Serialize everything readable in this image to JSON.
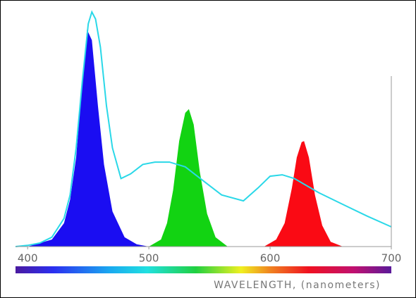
{
  "chart_data": {
    "type": "area",
    "x_label": "WAVELENGTH, (nanometers)",
    "xlim": [
      390,
      700
    ],
    "xticks": [
      400,
      500,
      600,
      700
    ],
    "ylim": [
      0,
      100
    ],
    "series": [
      {
        "color": "#1a0df2",
        "fill": true,
        "x": [
          400,
          420,
          430,
          435,
          440,
          445,
          449,
          453,
          458,
          463,
          470,
          480,
          490,
          500
        ],
        "values": [
          0,
          3,
          10,
          20,
          38,
          70,
          92.5,
          88,
          60,
          35,
          15,
          4,
          1,
          0
        ]
      },
      {
        "color": "#12d312",
        "fill": true,
        "x": [
          500,
          510,
          515,
          520,
          525,
          530,
          533,
          537,
          542,
          548,
          555,
          565
        ],
        "values": [
          0,
          3,
          10,
          24,
          45,
          57,
          58.6,
          52,
          32,
          14,
          4,
          0
        ]
      },
      {
        "color": "#fa0a14",
        "fill": true,
        "x": [
          595,
          605,
          612,
          618,
          622,
          626,
          628,
          632,
          637,
          643,
          650,
          660
        ],
        "values": [
          0,
          3,
          10,
          25,
          38,
          44.5,
          45,
          38,
          22,
          9,
          2,
          0
        ]
      },
      {
        "color": "#2ad8e8",
        "fill": false,
        "x": [
          390,
          400,
          410,
          420,
          430,
          435,
          440,
          445,
          450,
          453,
          456,
          460,
          465,
          470,
          477,
          485,
          495,
          505,
          517,
          530,
          545,
          560,
          578,
          590,
          600,
          610,
          620,
          640,
          660,
          680,
          700
        ],
        "values": [
          0,
          0.5,
          1.5,
          4,
          12,
          22,
          42,
          70,
          95,
          100,
          97,
          85,
          60,
          42,
          29,
          31,
          35,
          36,
          36,
          34,
          28,
          22,
          19.5,
          25,
          30,
          30.6,
          29,
          23,
          18,
          13,
          8.4
        ]
      }
    ]
  }
}
